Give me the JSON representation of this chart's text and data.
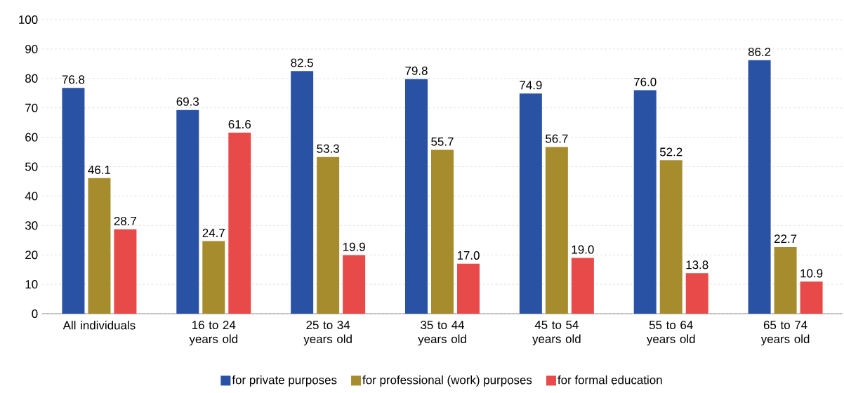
{
  "chart_data": {
    "type": "bar",
    "categories": [
      "All individuals",
      "16 to 24 years old",
      "25 to 34 years old",
      "35 to 44 years old",
      "45 to 54 years old",
      "55 to 64 years old",
      "65 to 74 years old"
    ],
    "series": [
      {
        "name": "for private purposes",
        "color": "#2a52a4",
        "values": [
          76.8,
          69.3,
          82.5,
          79.8,
          74.9,
          76.0,
          86.2
        ],
        "value_labels": [
          "76.8",
          "69.3",
          "82.5",
          "79.8",
          "74.9",
          "76.0",
          "86.2"
        ]
      },
      {
        "name": "for professional (work) purposes",
        "color": "#a68c2c",
        "values": [
          46.1,
          24.7,
          53.3,
          55.7,
          56.7,
          52.2,
          22.7
        ],
        "value_labels": [
          "46.1",
          "24.7",
          "53.3",
          "55.7",
          "56.7",
          "52.2",
          "22.7"
        ]
      },
      {
        "name": "for formal education",
        "color": "#e84a4a",
        "values": [
          28.7,
          61.6,
          19.9,
          17.0,
          19.0,
          13.8,
          10.9
        ],
        "value_labels": [
          "28.7",
          "61.6",
          "19.9",
          "17.0",
          "19.0",
          "13.8",
          "10.9"
        ]
      }
    ],
    "ylim": [
      0,
      100
    ],
    "yticks": [
      0,
      10,
      20,
      30,
      40,
      50,
      60,
      70,
      80,
      90,
      100
    ],
    "grid": "y",
    "legend": "bottom"
  }
}
